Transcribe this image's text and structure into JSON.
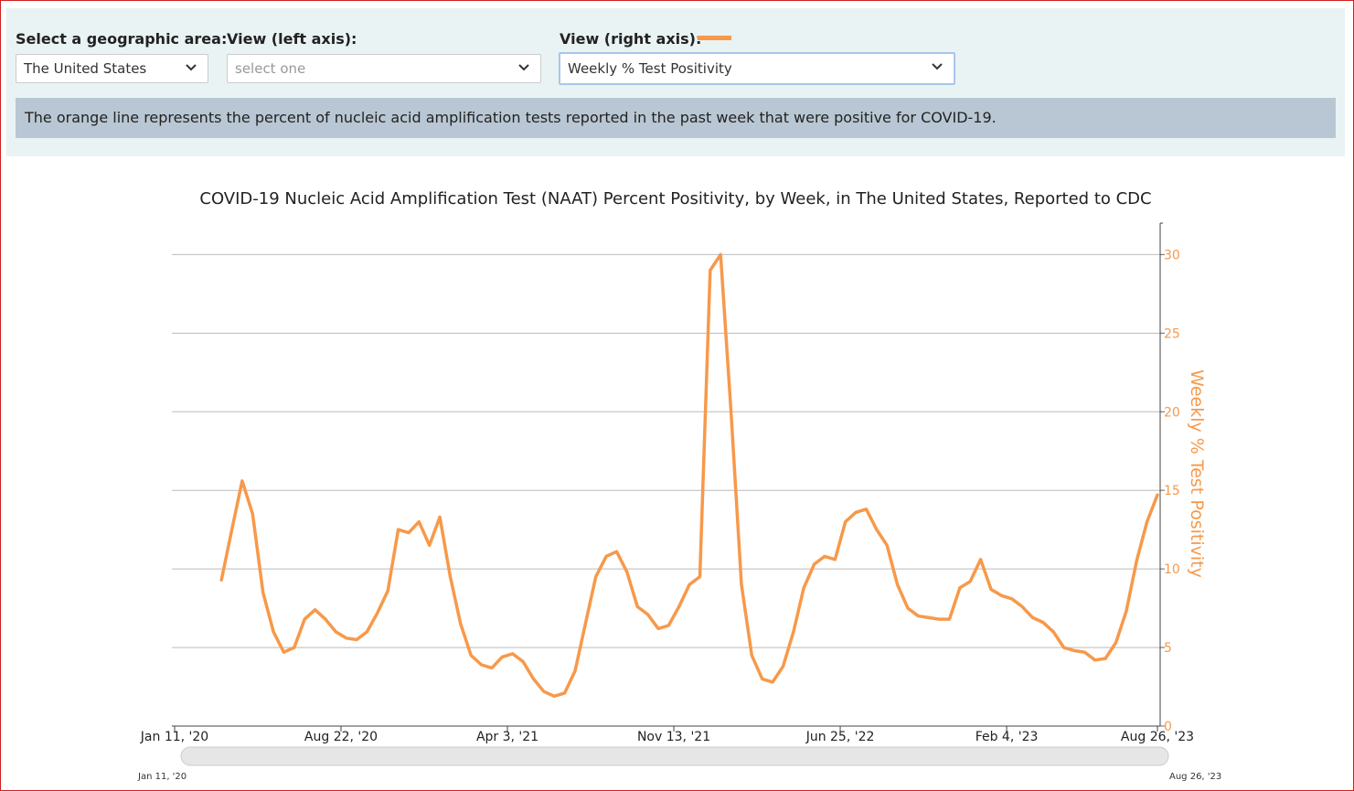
{
  "controls": {
    "geo_label": "Select a geographic area:",
    "geo_value": "The United States",
    "left_label": "View (left axis):",
    "left_value": "select one",
    "right_label": "View (right axis):",
    "right_value": "Weekly % Test Positivity",
    "info": "The orange line represents the percent of nucleic acid amplification tests reported in the past week that were positive for COVID-19."
  },
  "chart_data": {
    "type": "line",
    "title": "COVID-19 Nucleic Acid Amplification Test (NAAT) Percent Positivity, by Week, in The United States, Reported to CDC",
    "y2_label": "Weekly % Test Positivity",
    "x": [
      "2020-03-14",
      "2020-03-28",
      "2020-04-11",
      "2020-04-25",
      "2020-05-09",
      "2020-05-23",
      "2020-06-06",
      "2020-06-20",
      "2020-07-04",
      "2020-07-18",
      "2020-08-01",
      "2020-08-15",
      "2020-08-29",
      "2020-09-12",
      "2020-09-26",
      "2020-10-10",
      "2020-10-24",
      "2020-11-07",
      "2020-11-21",
      "2020-12-05",
      "2020-12-19",
      "2021-01-02",
      "2021-01-16",
      "2021-01-30",
      "2021-02-13",
      "2021-02-27",
      "2021-03-13",
      "2021-03-27",
      "2021-04-10",
      "2021-04-24",
      "2021-05-08",
      "2021-05-22",
      "2021-06-05",
      "2021-06-19",
      "2021-07-03",
      "2021-07-17",
      "2021-07-31",
      "2021-08-14",
      "2021-08-28",
      "2021-09-11",
      "2021-09-25",
      "2021-10-09",
      "2021-10-23",
      "2021-11-06",
      "2021-11-20",
      "2021-12-04",
      "2021-12-18",
      "2022-01-01",
      "2022-01-15",
      "2022-01-29",
      "2022-02-12",
      "2022-02-26",
      "2022-03-12",
      "2022-03-26",
      "2022-04-09",
      "2022-04-23",
      "2022-05-07",
      "2022-05-21",
      "2022-06-04",
      "2022-06-18",
      "2022-07-02",
      "2022-07-16",
      "2022-07-30",
      "2022-08-13",
      "2022-08-27",
      "2022-09-10",
      "2022-09-24",
      "2022-10-08",
      "2022-10-22",
      "2022-11-05",
      "2022-11-19",
      "2022-12-03",
      "2022-12-17",
      "2022-12-31",
      "2023-01-14",
      "2023-01-28",
      "2023-02-11",
      "2023-02-25",
      "2023-03-11",
      "2023-03-25",
      "2023-04-08",
      "2023-04-22",
      "2023-05-06",
      "2023-05-20",
      "2023-06-03",
      "2023-06-17",
      "2023-07-01",
      "2023-07-15",
      "2023-07-29",
      "2023-08-12",
      "2023-08-26"
    ],
    "series": [
      {
        "name": "Weekly % Test Positivity",
        "color": "#f7994a",
        "axis": "y2",
        "values": [
          9.3,
          12.5,
          15.6,
          13.5,
          8.5,
          6,
          4.7,
          5,
          6.8,
          7.4,
          6.8,
          6,
          5.6,
          5.5,
          6,
          7.2,
          8.6,
          12.5,
          12.3,
          13,
          11.5,
          13.3,
          9.5,
          6.5,
          4.5,
          3.9,
          3.7,
          4.4,
          4.6,
          4.1,
          3,
          2.2,
          1.9,
          2.1,
          3.5,
          6.5,
          9.5,
          10.8,
          11.1,
          9.8,
          7.6,
          7.1,
          6.2,
          6.4,
          7.6,
          9,
          9.5,
          29,
          30,
          20,
          9,
          4.5,
          3,
          2.8,
          3.8,
          6,
          8.8,
          10.3,
          10.8,
          10.6,
          13,
          13.6,
          13.8,
          12.5,
          11.5,
          9,
          7.5,
          7,
          6.9,
          6.8,
          6.8,
          8.8,
          9.2,
          10.6,
          8.7,
          8.3,
          8.1,
          7.6,
          6.9,
          6.6,
          6,
          5,
          4.8,
          4.7,
          4.2,
          4.3,
          5.3,
          7.3,
          10.5,
          13,
          14.7
        ]
      }
    ],
    "xlim": [
      "2020-01-11",
      "2023-08-26"
    ],
    "xticks": [
      {
        "value": "2020-01-11",
        "label": "Jan 11, '20"
      },
      {
        "value": "2020-08-22",
        "label": "Aug 22, '20"
      },
      {
        "value": "2021-04-03",
        "label": "Apr 3, '21"
      },
      {
        "value": "2021-11-13",
        "label": "Nov 13, '21"
      },
      {
        "value": "2022-06-25",
        "label": "Jun 25, '22"
      },
      {
        "value": "2023-02-04",
        "label": "Feb 4, '23"
      },
      {
        "value": "2023-08-26",
        "label": "Aug 26, '23"
      }
    ],
    "y2lim": [
      0,
      32
    ],
    "y2ticks": [
      0,
      5,
      10,
      15,
      20,
      25,
      30
    ],
    "grid": true,
    "range_slider": {
      "start": "Jan 11, '20",
      "end": "Aug 26, '23"
    }
  }
}
